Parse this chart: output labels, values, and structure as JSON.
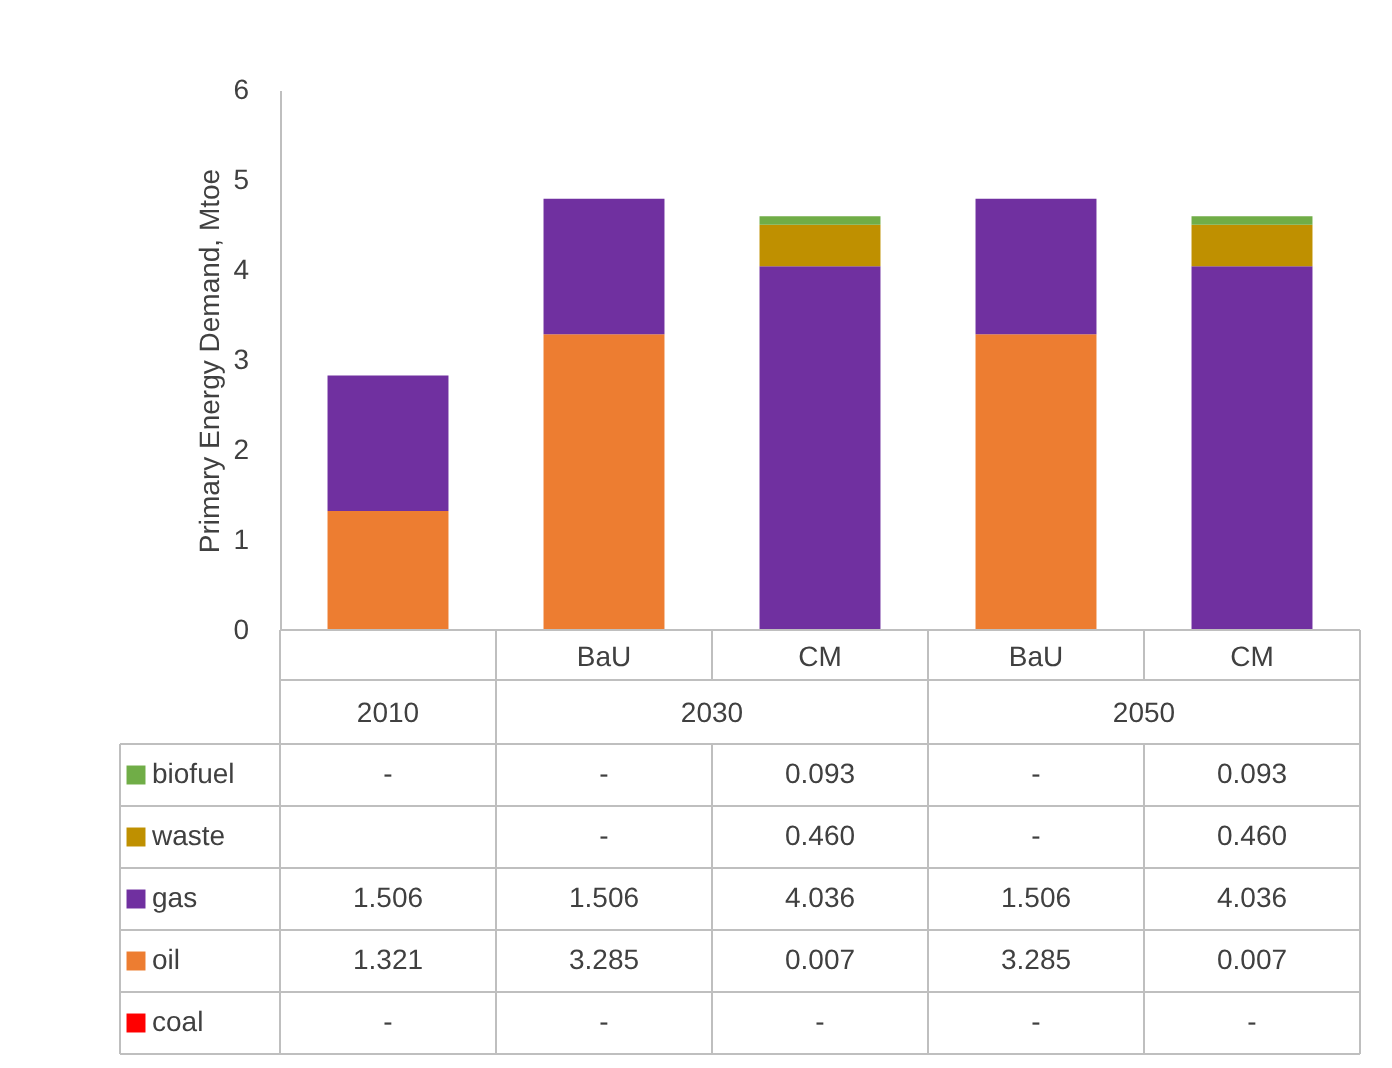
{
  "chart_data": {
    "type": "bar",
    "stacked": true,
    "ylabel": "Primary Energy Demand, Mtoe",
    "categories": [
      null,
      "BaU",
      "CM",
      "BaU",
      "CM"
    ],
    "annotations": [
      "2010",
      "2030",
      "2050"
    ],
    "legend": "bottom left",
    "ylim": [
      0,
      6
    ],
    "yticks": [
      0,
      1,
      2,
      3,
      4,
      5,
      6
    ],
    "grid": false,
    "series": [
      {
        "name": "coal",
        "color": "#ff0000",
        "values": [
          null,
          null,
          null,
          null,
          null
        ],
        "value_labels": [
          "-",
          "-",
          "-",
          "-",
          "-"
        ]
      },
      {
        "name": "oil",
        "color": "#ed7d31",
        "values": [
          1.321,
          3.285,
          0.007,
          3.285,
          0.007
        ],
        "value_labels": [
          "1.321",
          "3.285",
          "0.007",
          "3.285",
          "0.007"
        ]
      },
      {
        "name": "gas",
        "color": "#7030a0",
        "values": [
          1.506,
          1.506,
          4.036,
          1.506,
          4.036
        ],
        "value_labels": [
          "1.506",
          "1.506",
          "4.036",
          "1.506",
          "4.036"
        ]
      },
      {
        "name": "waste",
        "color": "#bf9000",
        "values": [
          null,
          null,
          0.46,
          null,
          0.46
        ],
        "value_labels": [
          null,
          "-",
          "0.460",
          "-",
          "0.460"
        ]
      },
      {
        "name": "biofuel",
        "color": "#70ad47",
        "values": [
          null,
          null,
          0.093,
          null,
          0.093
        ],
        "value_labels": [
          "-",
          "-",
          "0.093",
          "-",
          "0.093"
        ]
      }
    ]
  }
}
